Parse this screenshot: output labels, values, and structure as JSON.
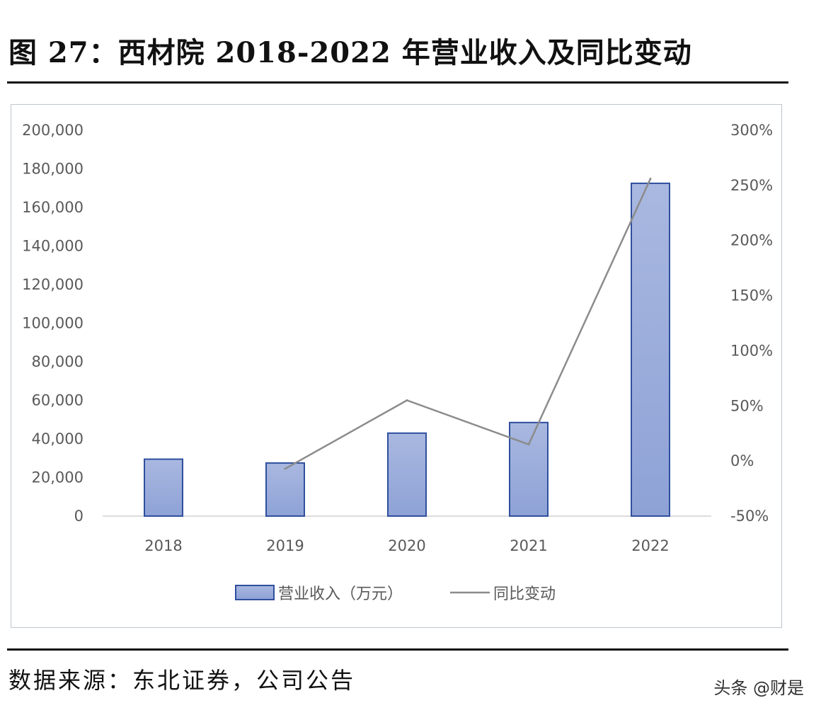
{
  "figure_title": "图 27：西材院 2018-2022 年营业收入及同比变动",
  "source_text": "数据来源：东北证券，公司公告",
  "watermark": "头条 @财是",
  "chart_data": {
    "type": "bar",
    "categories": [
      "2018",
      "2019",
      "2020",
      "2021",
      "2022"
    ],
    "series": [
      {
        "name": "营业收入（万元）",
        "type": "bar",
        "axis": "left",
        "values": [
          29500,
          27500,
          43000,
          48500,
          172500
        ]
      },
      {
        "name": "同比变动",
        "type": "line",
        "axis": "right",
        "values": [
          null,
          -7,
          55,
          15,
          256
        ]
      }
    ],
    "y_left": {
      "min": 0,
      "max": 200000,
      "step": 20000,
      "tick_labels": [
        "0",
        "20,000",
        "40,000",
        "60,000",
        "80,000",
        "100,000",
        "120,000",
        "140,000",
        "160,000",
        "180,000",
        "200,000"
      ]
    },
    "y_right": {
      "min": -50,
      "max": 300,
      "step": 50,
      "tick_labels": [
        "-50%",
        "0%",
        "50%",
        "100%",
        "150%",
        "200%",
        "250%",
        "300%"
      ]
    },
    "grid": false,
    "legend_position": "bottom",
    "colors": {
      "bar_fill_top": "#a9b8e0",
      "bar_fill_bottom": "#8ea2d6",
      "bar_stroke": "#2f4f9e",
      "line": "#8c8c8c"
    }
  }
}
